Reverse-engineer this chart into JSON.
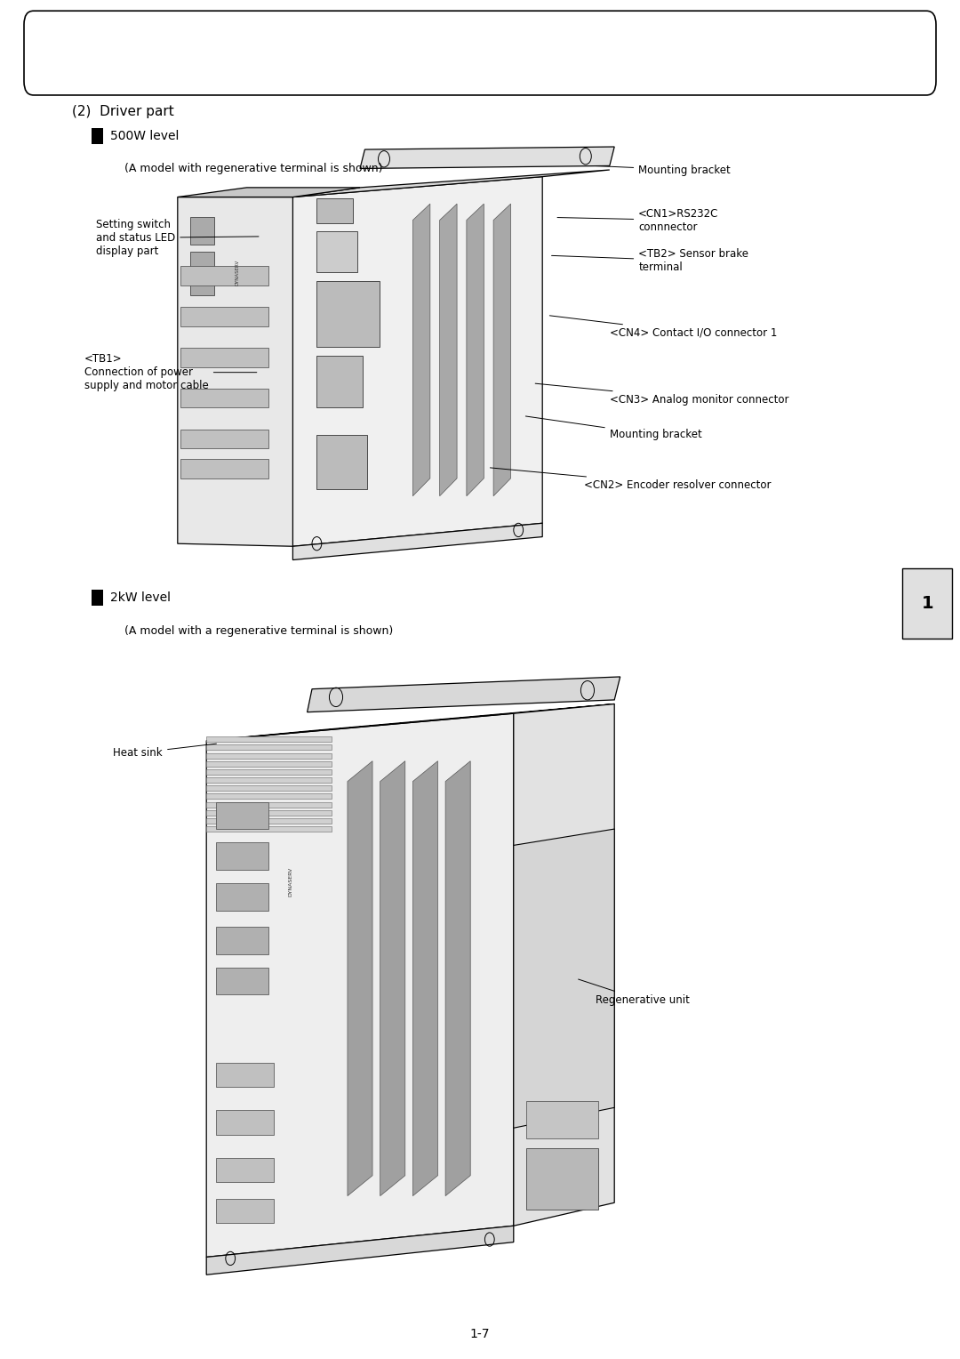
{
  "background_color": "#ffffff",
  "page_number": "1-7",
  "section_title": "(2)  Driver part",
  "subsection1_bullet": "500W level",
  "subsection1_note": "(A model with regenerative terminal is shown)",
  "subsection2_bullet": "2kW level",
  "subsection2_note": "(A model with a regenerative terminal is shown)",
  "tab_label": "1",
  "label_fs": 8.5
}
